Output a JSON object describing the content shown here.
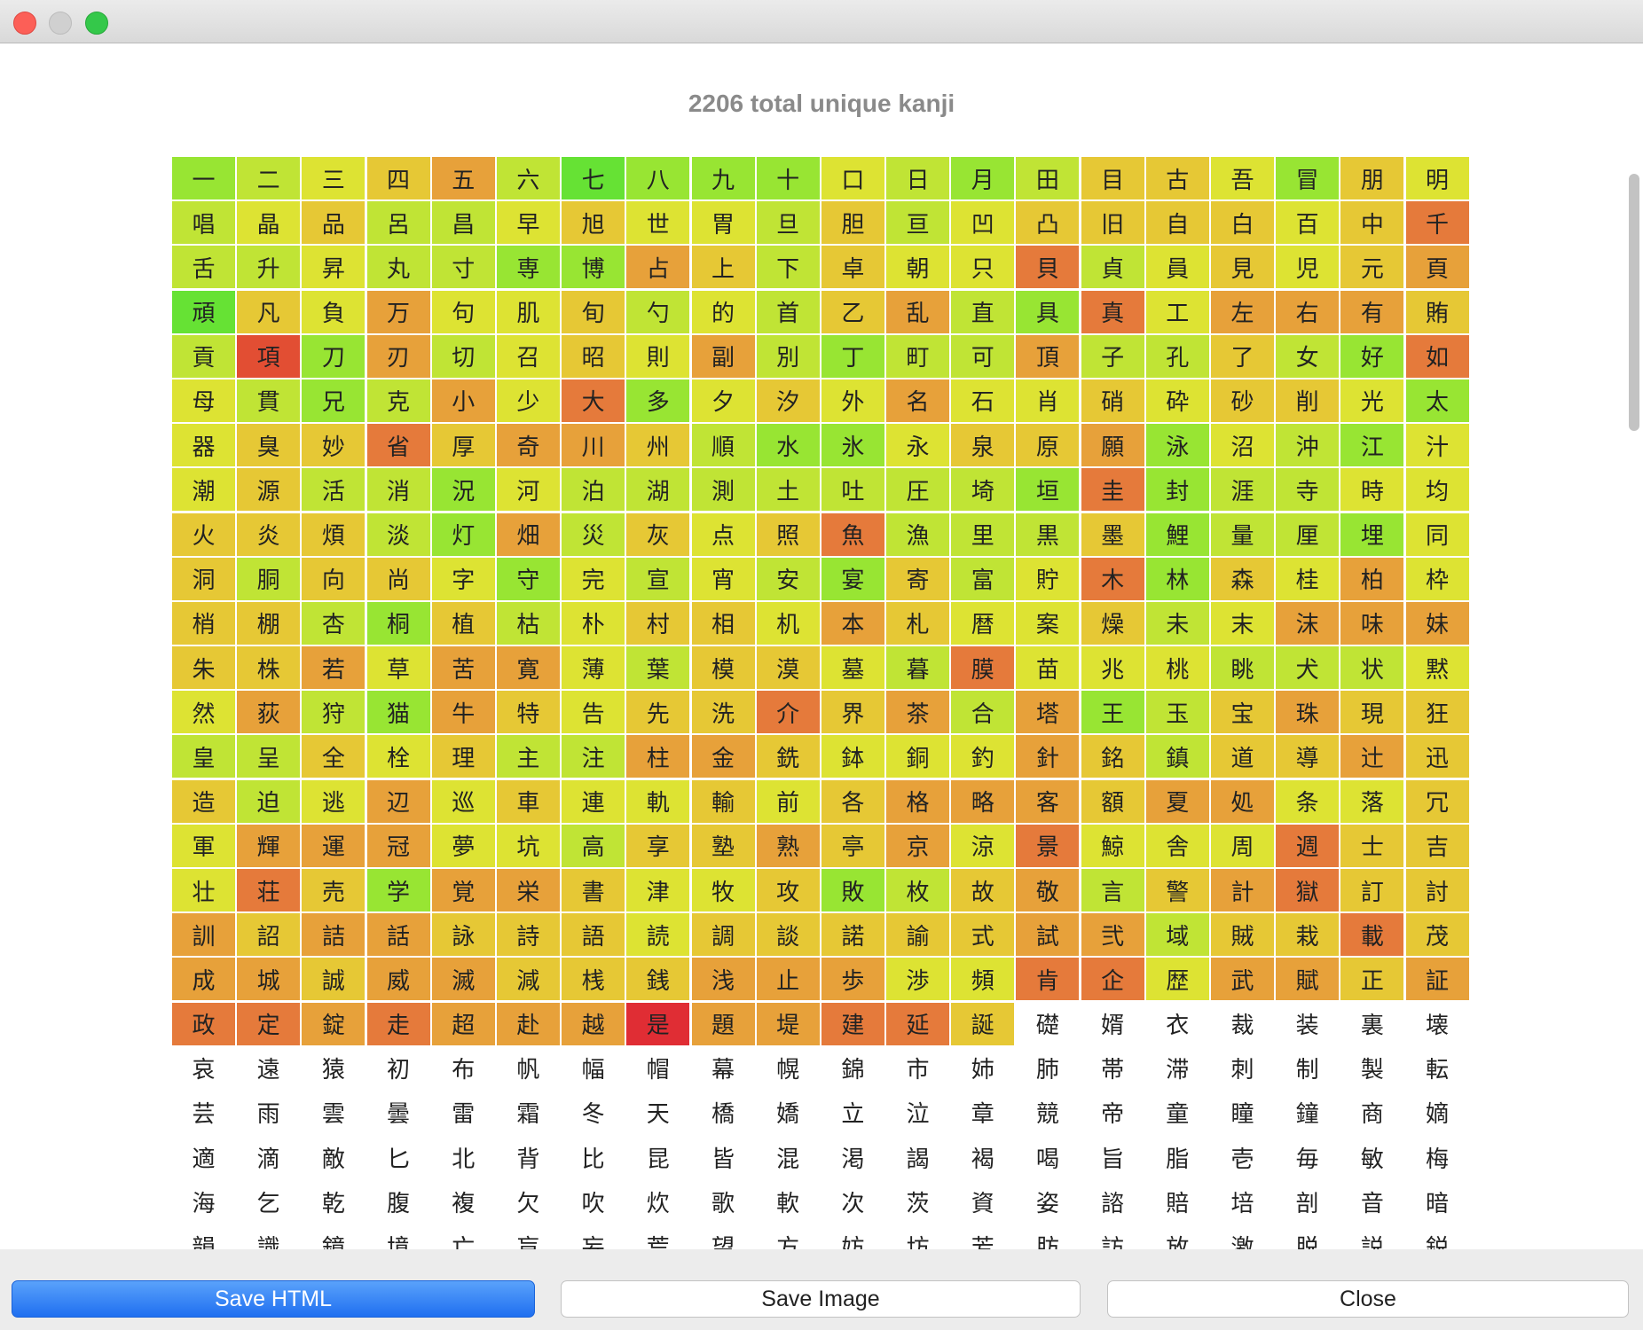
{
  "header": {
    "title": "2206 total unique kanji"
  },
  "colors": [
    "#66e234",
    "#98e533",
    "#c0e435",
    "#dde333",
    "#e6c835",
    "#e7a13a",
    "#e57a3b",
    "#e24e33",
    "#e02d34",
    "#ffffff"
  ],
  "grid": {
    "chars": "一二三四五六七八九十口日月田目古吾冒朋明唱晶品呂昌早旭世胃旦胆亘凹凸旧自白百中千舌升昇丸寸専博占上下卓朝只貝貞員見児元頁頑凡負万句肌旬勺的首乙乱直具真工左右有賄貢項刀刃切召昭則副別丁町可頂子孔了女好如母貫兄克小少大多夕汐外名石肖硝砕砂削光太器臭妙省厚奇川州順水氷永泉原願泳沼沖江汁潮源活消況河泊湖測土吐圧埼垣圭封涯寺時均火炎煩淡灯畑災灰点照魚漁里黒墨鯉量厘埋同洞胴向尚字守完宣宵安宴寄富貯木林森桂柏枠梢棚杏桐植枯朴村相机本札暦案燥未末沫味妹朱株若草苦寛薄葉模漠墓暮膜苗兆桃眺犬状黙然荻狩猫牛特告先洗介界茶合塔王玉宝珠現狂皇呈全栓理主注柱金銑鉢銅釣針銘鎮道導辻迅造迫逃辺巡車連軌輸前各格略客額夏処条落冗軍輝運冠夢坑高享塾熟亭京涼景鯨舎周週士吉壮荘売学覚栄書津牧攻敗枚故敬言警計獄訂討訓詔詰話詠詩語読調談諾諭式試弐域賊栽載茂成城誠威滅減桟銭浅止歩渉頻肯企歴武賦正証政定錠走超赴越是題堤建延誕礎婿衣裁装裏壊哀遠猿初布帆幅帽幕幌錦市姉肺帯滞刺制製転芸雨雲曇雷霜冬天橋嬌立泣章競帝童瞳鐘商嫡適滴敵匕北背比昆皆混渇謁褐喝旨脂壱毎敏梅海乞乾腹複欠吹炊歌軟次茨資姿諮賠培剖音暗韻識鏡境亡盲妄荒望方妨坊芳肪訪放激脱説鋭",
    "heat": "1234520111321244314323422343324234444346223221154243362343450435334232452163555427152343521225224216321253613435334344313446455421134451321334221322222221612233444215243462224122134244313232142361435344214234435433423555445355324432633322233521543446452512454422434225543335424454423534334345554553343555332445453633364436415543341245245644545544434444455244645545544455533663554566565558556649999999999999999999"
  }
}
